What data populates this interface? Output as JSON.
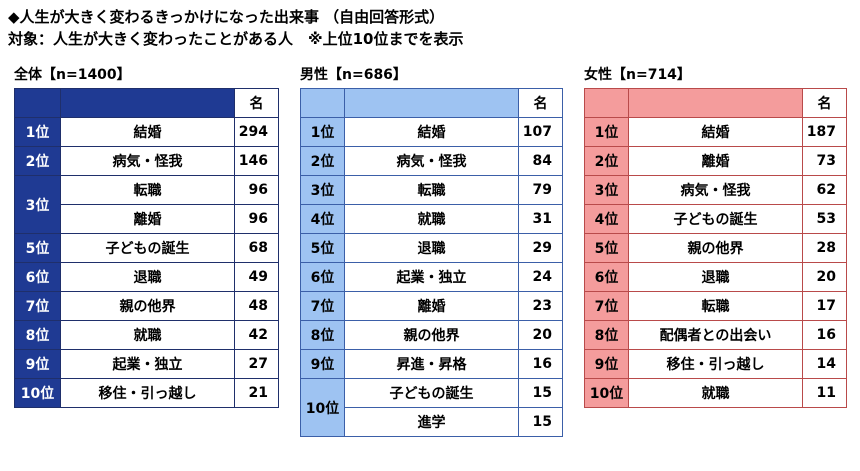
{
  "title": "◆人生が大きく変わるきっかけになった出来事 （自由回答形式）",
  "subtitle": "対象：人生が大きく変わったことがある人　※上位10位までを表示",
  "unit_label": "名",
  "colors": {
    "overall": "#1f3a93",
    "male": "#9ec3f2",
    "female": "#f49c9c"
  },
  "chart_data": [
    {
      "type": "table",
      "label": "全体【n=1400】",
      "rows": [
        {
          "rank": "1位",
          "item": "結婚",
          "value": 294
        },
        {
          "rank": "2位",
          "item": "病気・怪我",
          "value": 146
        },
        {
          "rank": "3位",
          "item": "転職",
          "value": 96
        },
        {
          "rank": "",
          "item": "離婚",
          "value": 96
        },
        {
          "rank": "5位",
          "item": "子どもの誕生",
          "value": 68
        },
        {
          "rank": "6位",
          "item": "退職",
          "value": 49
        },
        {
          "rank": "7位",
          "item": "親の他界",
          "value": 48
        },
        {
          "rank": "8位",
          "item": "就職",
          "value": 42
        },
        {
          "rank": "9位",
          "item": "起業・独立",
          "value": 27
        },
        {
          "rank": "10位",
          "item": "移住・引っ越し",
          "value": 21
        }
      ]
    },
    {
      "type": "table",
      "label": "男性【n=686】",
      "rows": [
        {
          "rank": "1位",
          "item": "結婚",
          "value": 107
        },
        {
          "rank": "2位",
          "item": "病気・怪我",
          "value": 84
        },
        {
          "rank": "3位",
          "item": "転職",
          "value": 79
        },
        {
          "rank": "4位",
          "item": "就職",
          "value": 31
        },
        {
          "rank": "5位",
          "item": "退職",
          "value": 29
        },
        {
          "rank": "6位",
          "item": "起業・独立",
          "value": 24
        },
        {
          "rank": "7位",
          "item": "離婚",
          "value": 23
        },
        {
          "rank": "8位",
          "item": "親の他界",
          "value": 20
        },
        {
          "rank": "9位",
          "item": "昇進・昇格",
          "value": 16
        },
        {
          "rank": "10位",
          "item": "子どもの誕生",
          "value": 15
        },
        {
          "rank": "",
          "item": "進学",
          "value": 15
        }
      ]
    },
    {
      "type": "table",
      "label": "女性【n=714】",
      "rows": [
        {
          "rank": "1位",
          "item": "結婚",
          "value": 187
        },
        {
          "rank": "2位",
          "item": "離婚",
          "value": 73
        },
        {
          "rank": "3位",
          "item": "病気・怪我",
          "value": 62
        },
        {
          "rank": "4位",
          "item": "子どもの誕生",
          "value": 53
        },
        {
          "rank": "5位",
          "item": "親の他界",
          "value": 28
        },
        {
          "rank": "6位",
          "item": "退職",
          "value": 20
        },
        {
          "rank": "7位",
          "item": "転職",
          "value": 17
        },
        {
          "rank": "8位",
          "item": "配偶者との出会い",
          "value": 16
        },
        {
          "rank": "9位",
          "item": "移住・引っ越し",
          "value": 14
        },
        {
          "rank": "10位",
          "item": "就職",
          "value": 11
        }
      ]
    }
  ]
}
